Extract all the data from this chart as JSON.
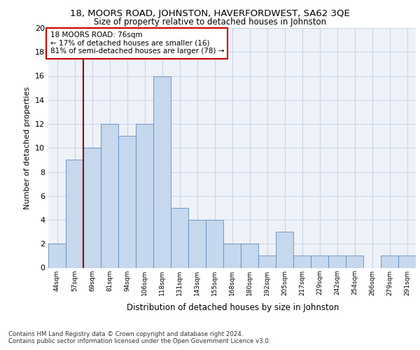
{
  "title1": "18, MOORS ROAD, JOHNSTON, HAVERFORDWEST, SA62 3QE",
  "title2": "Size of property relative to detached houses in Johnston",
  "xlabel": "Distribution of detached houses by size in Johnston",
  "ylabel": "Number of detached properties",
  "categories": [
    "44sqm",
    "57sqm",
    "69sqm",
    "81sqm",
    "94sqm",
    "106sqm",
    "118sqm",
    "131sqm",
    "143sqm",
    "155sqm",
    "168sqm",
    "180sqm",
    "192sqm",
    "205sqm",
    "217sqm",
    "229sqm",
    "242sqm",
    "254sqm",
    "266sqm",
    "279sqm",
    "291sqm"
  ],
  "values": [
    2,
    9,
    10,
    12,
    11,
    12,
    16,
    5,
    4,
    4,
    2,
    2,
    1,
    3,
    1,
    1,
    1,
    1,
    0,
    1,
    1
  ],
  "bar_color": "#c5d8ed",
  "bar_edge_color": "#5a8abf",
  "subject_line_color": "#8b0000",
  "annotation_text": "18 MOORS ROAD: 76sqm\n← 17% of detached houses are smaller (16)\n81% of semi-detached houses are larger (78) →",
  "annotation_box_color": "#ffffff",
  "annotation_box_edge": "#cc0000",
  "ylim": [
    0,
    20
  ],
  "yticks": [
    0,
    2,
    4,
    6,
    8,
    10,
    12,
    14,
    16,
    18,
    20
  ],
  "grid_color": "#c8d4e8",
  "footer": "Contains HM Land Registry data © Crown copyright and database right 2024.\nContains public sector information licensed under the Open Government Licence v3.0.",
  "bg_color": "#eef2f8"
}
